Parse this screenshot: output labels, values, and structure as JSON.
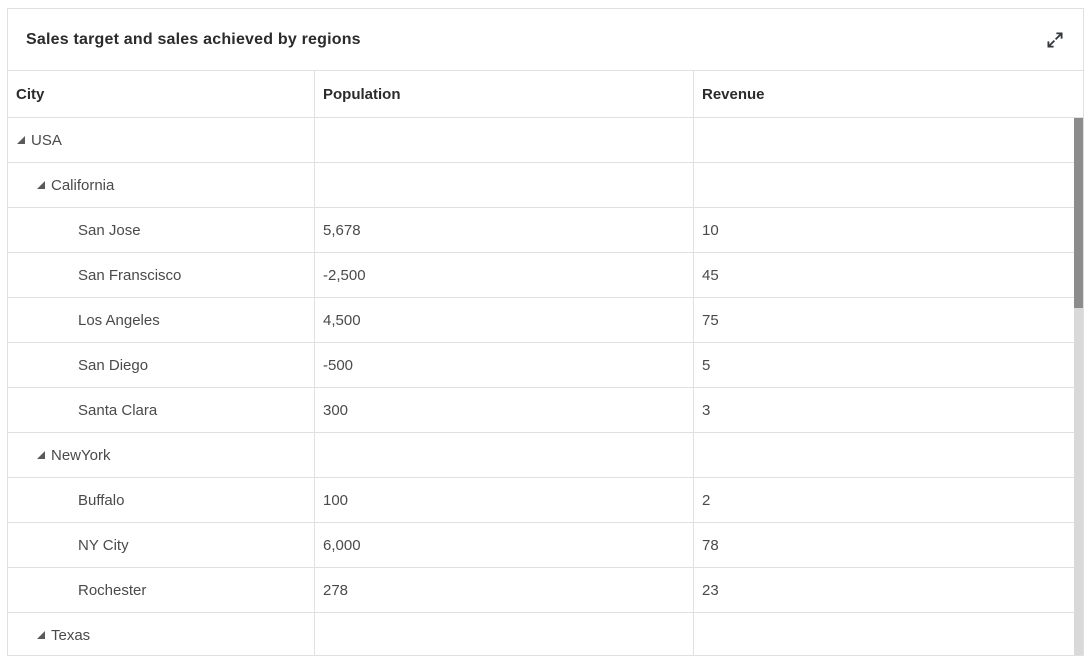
{
  "widget": {
    "title": "Sales target and sales achieved by regions",
    "maximize_icon": "diagonal-expand-arrows-icon"
  },
  "grid": {
    "columns": [
      {
        "label": "City"
      },
      {
        "label": "Population"
      },
      {
        "label": "Revenue"
      }
    ],
    "rows": [
      {
        "city": "USA",
        "population": "",
        "revenue": "",
        "level": 0,
        "expandable": true,
        "state": "expanded"
      },
      {
        "city": "California",
        "population": "",
        "revenue": "",
        "level": 1,
        "expandable": true,
        "state": "expanded"
      },
      {
        "city": "San Jose",
        "population": "5,678",
        "revenue": "10",
        "level": 2,
        "expandable": false
      },
      {
        "city": "San Franscisco",
        "population": "-2,500",
        "revenue": "45",
        "level": 2,
        "expandable": false
      },
      {
        "city": "Los Angeles",
        "population": "4,500",
        "revenue": "75",
        "level": 2,
        "expandable": false
      },
      {
        "city": "San Diego",
        "population": "-500",
        "revenue": "5",
        "level": 2,
        "expandable": false
      },
      {
        "city": "Santa Clara",
        "population": "300",
        "revenue": "3",
        "level": 2,
        "expandable": false
      },
      {
        "city": "NewYork",
        "population": "",
        "revenue": "",
        "level": 1,
        "expandable": true,
        "state": "expanded"
      },
      {
        "city": "Buffalo",
        "population": "100",
        "revenue": "2",
        "level": 2,
        "expandable": false
      },
      {
        "city": "NY City",
        "population": "6,000",
        "revenue": "78",
        "level": 2,
        "expandable": false
      },
      {
        "city": "Rochester",
        "population": "278",
        "revenue": "23",
        "level": 2,
        "expandable": false
      },
      {
        "city": "Texas",
        "population": "",
        "revenue": "",
        "level": 1,
        "expandable": true,
        "state": "expanded"
      }
    ]
  },
  "scrollbar": {
    "visible": true,
    "thumb_position": "top"
  },
  "colors": {
    "background": "#ffffff",
    "border": "#e0e0e0",
    "title_text": "#2b2b2b",
    "header_text": "#2b2b2b",
    "body_text": "#4a4a4a",
    "tree_icon": "#5a5a5a",
    "maximize_icon": "#33363d",
    "scrollbar_thumb": "#8c8c8c",
    "scrollbar_track": "#d9d9d9"
  }
}
